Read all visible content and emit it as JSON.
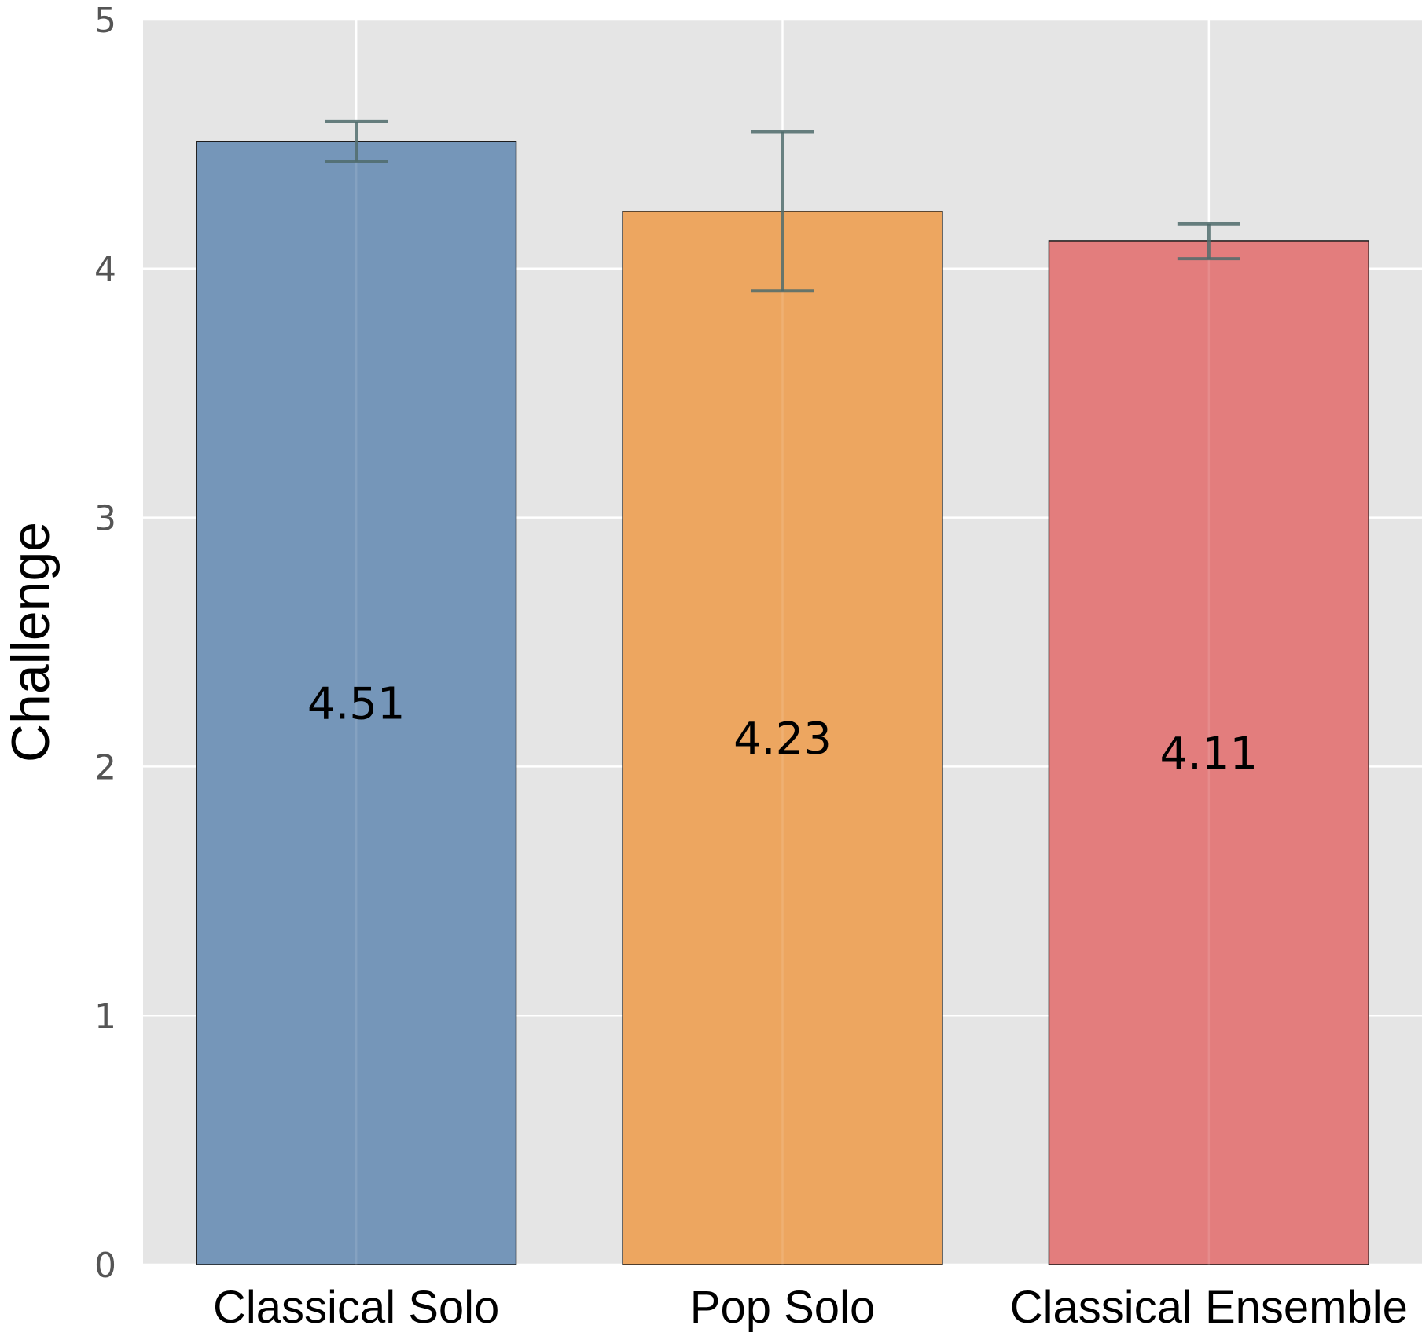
{
  "chart_data": {
    "type": "bar",
    "categories": [
      "Classical Solo",
      "Pop Solo",
      "Classical Ensemble"
    ],
    "values": [
      4.51,
      4.23,
      4.11
    ],
    "value_labels": [
      "4.51",
      "4.23",
      "4.11"
    ],
    "error_low": [
      4.43,
      3.91,
      4.04
    ],
    "error_high": [
      4.59,
      4.55,
      4.18
    ],
    "colors": [
      "#7294b8",
      "#eda45d",
      "#e27a7a"
    ],
    "title": "",
    "xlabel": "",
    "ylabel": "Challenge",
    "ylim": [
      0,
      5
    ],
    "yticks": [
      "0",
      "1",
      "2",
      "3",
      "4",
      "5"
    ],
    "grid": true,
    "background": "#e5e5e5",
    "error_bar_color": "#4f6b6b"
  }
}
